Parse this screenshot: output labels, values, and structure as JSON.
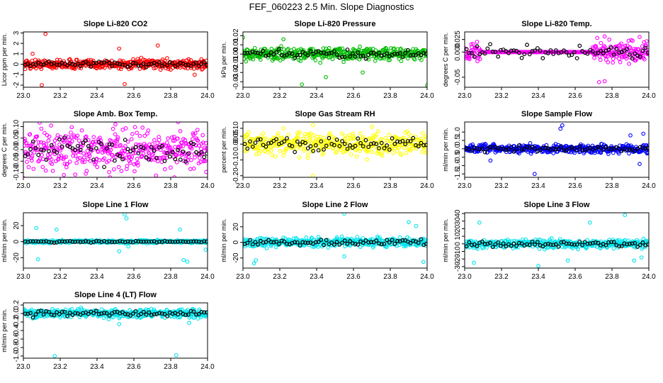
{
  "figure": {
    "title": "FEF_060223  2.5 Min. Slope Diagnostics"
  },
  "chart_data": [
    {
      "type": "scatter",
      "title": "Slope Li-820 CO2",
      "xlabel": "",
      "ylabel": "Licor ppm per min.",
      "color": "#ff0000",
      "xlim": [
        23.0,
        24.0
      ],
      "ylim": [
        -2.2,
        3.1
      ],
      "yticks": [
        -2,
        -1,
        0,
        1,
        2,
        3
      ],
      "ytick_labels": [
        "-2",
        "-1",
        "0",
        "1",
        "2",
        "3"
      ],
      "xticks": [
        23.0,
        23.2,
        23.4,
        23.6,
        23.8,
        24.0
      ],
      "xtick_labels": [
        "23.0",
        "23.2",
        "23.4",
        "23.6",
        "23.8",
        "24.0"
      ],
      "spread": 0.4,
      "outliers": [
        [
          23.12,
          2.9
        ],
        [
          23.05,
          1.0
        ],
        [
          23.1,
          -2.0
        ],
        [
          23.55,
          -1.9
        ],
        [
          23.52,
          1.5
        ],
        [
          23.73,
          1.8
        ],
        [
          23.93,
          -1.0
        ]
      ]
    },
    {
      "type": "scatter",
      "title": "Slope Li-820 Pressure",
      "xlabel": "",
      "ylabel": "kPa per min.",
      "color": "#00bb00",
      "xlim": [
        23.0,
        24.0
      ],
      "ylim": [
        -0.036,
        0.024
      ],
      "yticks": [
        -0.03,
        -0.02,
        -0.01,
        0.0,
        0.01,
        0.02
      ],
      "ytick_labels": [
        "-0.03",
        "-0.02",
        "-0.01",
        "0.00",
        "0.01",
        "0.02"
      ],
      "xticks": [
        23.0,
        23.2,
        23.4,
        23.6,
        23.8,
        24.0
      ],
      "xtick_labels": [
        "23.0",
        "23.2",
        "23.4",
        "23.6",
        "23.8",
        "24.0"
      ],
      "spread": 0.006,
      "outliers": [
        [
          23.0,
          0.018
        ],
        [
          23.45,
          -0.025
        ],
        [
          23.65,
          -0.02
        ],
        [
          24.0,
          -0.034
        ],
        [
          23.32,
          -0.033
        ],
        [
          23.22,
          0.016
        ]
      ]
    },
    {
      "type": "scatter",
      "title": "Slope Li-820 Temp.",
      "xlabel": "",
      "ylabel": "degrees C per min.",
      "color": "#ff00ff",
      "xlim": [
        23.0,
        24.0
      ],
      "ylim": [
        -0.07,
        0.04
      ],
      "yticks": [
        -0.05,
        0.0,
        0.025
      ],
      "ytick_labels": [
        "-0.05",
        "0.000",
        "0.025"
      ],
      "xticks": [
        23.0,
        23.2,
        23.4,
        23.6,
        23.8,
        24.0
      ],
      "xtick_labels": [
        "23.0",
        "23.2",
        "23.4",
        "23.6",
        "23.8",
        "24.0"
      ],
      "spread": 0.018,
      "mode": "temp",
      "outliers": [
        [
          23.73,
          -0.06
        ],
        [
          23.76,
          -0.058
        ],
        [
          23.72,
          0.028
        ],
        [
          23.76,
          0.031
        ],
        [
          23.95,
          0.03
        ]
      ]
    },
    {
      "type": "scatter",
      "title": "Slope Amb. Box Temp.",
      "xlabel": "",
      "ylabel": "degrees C per min.",
      "color": "#ff00ff",
      "xlim": [
        23.0,
        24.0
      ],
      "ylim": [
        -0.12,
        0.12
      ],
      "yticks": [
        -0.1,
        -0.05,
        0.0,
        0.05,
        0.1
      ],
      "ytick_labels": [
        "-0.10",
        "-0.05",
        "0.00",
        "0.05",
        "0.10"
      ],
      "xticks": [
        23.0,
        23.2,
        23.4,
        23.6,
        23.8,
        24.0
      ],
      "xtick_labels": [
        "23.0",
        "23.2",
        "23.4",
        "23.6",
        "23.8",
        "24.0"
      ],
      "spread": 0.075,
      "outliers": [
        [
          23.5,
          0.11
        ],
        [
          23.22,
          -0.11
        ],
        [
          23.84,
          0.12
        ],
        [
          23.82,
          -0.12
        ],
        [
          23.47,
          -0.12
        ]
      ]
    },
    {
      "type": "scatter",
      "title": "Slope Gas Stream RH",
      "xlabel": "",
      "ylabel": "percent per min.",
      "color": "#ffff00",
      "xlim": [
        23.0,
        24.0
      ],
      "ylim": [
        -0.21,
        0.14
      ],
      "yticks": [
        -0.2,
        -0.1,
        0.0,
        0.05,
        0.1
      ],
      "ytick_labels": [
        "-0.20",
        "-0.10",
        "0.00",
        "0.05",
        "0.10"
      ],
      "xticks": [
        23.0,
        23.2,
        23.4,
        23.6,
        23.8,
        24.0
      ],
      "xtick_labels": [
        "23.0",
        "23.2",
        "23.4",
        "23.6",
        "23.8",
        "24.0"
      ],
      "spread": 0.06,
      "outliers": [
        [
          23.38,
          0.12
        ],
        [
          23.38,
          -0.2
        ],
        [
          23.22,
          0.1
        ],
        [
          23.7,
          0.11
        ]
      ]
    },
    {
      "type": "scatter",
      "title": "Slope Sample Flow",
      "xlabel": "",
      "ylabel": "ml/min per min.",
      "color": "#0000ff",
      "xlim": [
        23.0,
        24.0
      ],
      "ylim": [
        -1.7,
        1.6
      ],
      "yticks": [
        -1.5,
        -1.0,
        -0.5,
        0.0,
        0.5,
        1.0
      ],
      "ytick_labels": [
        "-1.5",
        "-1.0",
        "-0.5",
        "0.0",
        "0.5",
        "1.0"
      ],
      "xticks": [
        23.0,
        23.2,
        23.4,
        23.6,
        23.8,
        24.0
      ],
      "xtick_labels": [
        "23.0",
        "23.2",
        "23.4",
        "23.6",
        "23.8",
        "24.0"
      ],
      "spread": 0.22,
      "outliers": [
        [
          23.53,
          1.4
        ],
        [
          23.52,
          1.2
        ],
        [
          23.38,
          -1.5
        ],
        [
          23.95,
          -0.9
        ],
        [
          23.97,
          0.9
        ],
        [
          23.14,
          -0.7
        ],
        [
          23.9,
          0.8
        ]
      ]
    },
    {
      "type": "scatter",
      "title": "Slope Line 1 Flow",
      "xlabel": "",
      "ylabel": "ml/min per min.",
      "color": "#00e5ee",
      "xlim": [
        23.0,
        24.0
      ],
      "ylim": [
        -33,
        36
      ],
      "yticks": [
        -20,
        0,
        20
      ],
      "ytick_labels": [
        "-20",
        "0",
        "20"
      ],
      "xticks": [
        23.0,
        23.2,
        23.4,
        23.6,
        23.8,
        24.0
      ],
      "xtick_labels": [
        "23.0",
        "23.2",
        "23.4",
        "23.6",
        "23.8",
        "24.0"
      ],
      "spread": 1.5,
      "outliers": [
        [
          23.55,
          34
        ],
        [
          23.56,
          29
        ],
        [
          23.07,
          17
        ],
        [
          23.08,
          -22
        ],
        [
          23.18,
          15
        ],
        [
          23.52,
          -12
        ],
        [
          23.57,
          -6
        ],
        [
          23.87,
          -23
        ],
        [
          23.89,
          -25
        ],
        [
          23.85,
          15
        ],
        [
          23.99,
          -10
        ]
      ]
    },
    {
      "type": "scatter",
      "title": "Slope Line 2 Flow",
      "xlabel": "",
      "ylabel": "ml/min per min.",
      "color": "#00e5ee",
      "xlim": [
        23.0,
        24.0
      ],
      "ylim": [
        -33,
        38
      ],
      "yticks": [
        -20,
        0,
        20
      ],
      "ytick_labels": [
        "-20",
        "0",
        "20"
      ],
      "xticks": [
        23.0,
        23.2,
        23.4,
        23.6,
        23.8,
        24.0
      ],
      "xtick_labels": [
        "23.0",
        "23.2",
        "23.4",
        "23.6",
        "23.8",
        "24.0"
      ],
      "spread": 5,
      "outliers": [
        [
          23.55,
          37
        ],
        [
          23.07,
          -23
        ],
        [
          23.06,
          -27
        ],
        [
          23.9,
          26
        ],
        [
          23.94,
          21
        ],
        [
          23.98,
          -25
        ],
        [
          23.55,
          -18
        ]
      ]
    },
    {
      "type": "scatter",
      "title": "Slope Line 3 Flow",
      "xlabel": "",
      "ylabel": "ml/min per min.",
      "color": "#00e5ee",
      "xlim": [
        23.0,
        24.0
      ],
      "ylim": [
        -32,
        41
      ],
      "yticks": [
        -30,
        -20,
        -10,
        0,
        10,
        20,
        30,
        40
      ],
      "ytick_labels": [
        "-30",
        "-20",
        "-10",
        "0",
        "10",
        "20",
        "30",
        "40"
      ],
      "xticks": [
        23.0,
        23.2,
        23.4,
        23.6,
        23.8,
        24.0
      ],
      "xtick_labels": [
        "23.0",
        "23.2",
        "23.4",
        "23.6",
        "23.8",
        "24.0"
      ],
      "spread": 5,
      "outliers": [
        [
          23.87,
          38
        ],
        [
          23.08,
          28
        ],
        [
          23.05,
          -25
        ],
        [
          23.4,
          -29
        ],
        [
          23.56,
          -22
        ],
        [
          23.68,
          28
        ],
        [
          23.96,
          -18
        ],
        [
          23.92,
          -22
        ]
      ]
    },
    {
      "type": "scatter",
      "title": "Slope Line 4 (LT) Flow",
      "xlabel": "",
      "ylabel": "ml/min per min.",
      "color": "#00e5ee",
      "xlim": [
        23.0,
        24.0
      ],
      "ylim": [
        -1.05,
        0.25
      ],
      "yticks": [
        -1.0,
        -0.8,
        -0.6,
        -0.4,
        -0.2,
        0.0,
        0.2
      ],
      "ytick_labels": [
        "-1.0",
        "-0.8",
        "-0.6",
        "-0.4",
        "-0.2",
        "0.0",
        "0.2"
      ],
      "xticks": [
        23.0,
        23.2,
        23.4,
        23.6,
        23.8,
        24.0
      ],
      "xtick_labels": [
        "23.0",
        "23.2",
        "23.4",
        "23.6",
        "23.8",
        "24.0"
      ],
      "spread": 0.09,
      "outliers": [
        [
          23.17,
          -1.0
        ],
        [
          23.83,
          -0.98
        ],
        [
          23.52,
          -0.25
        ],
        [
          23.9,
          -0.22
        ]
      ]
    }
  ]
}
